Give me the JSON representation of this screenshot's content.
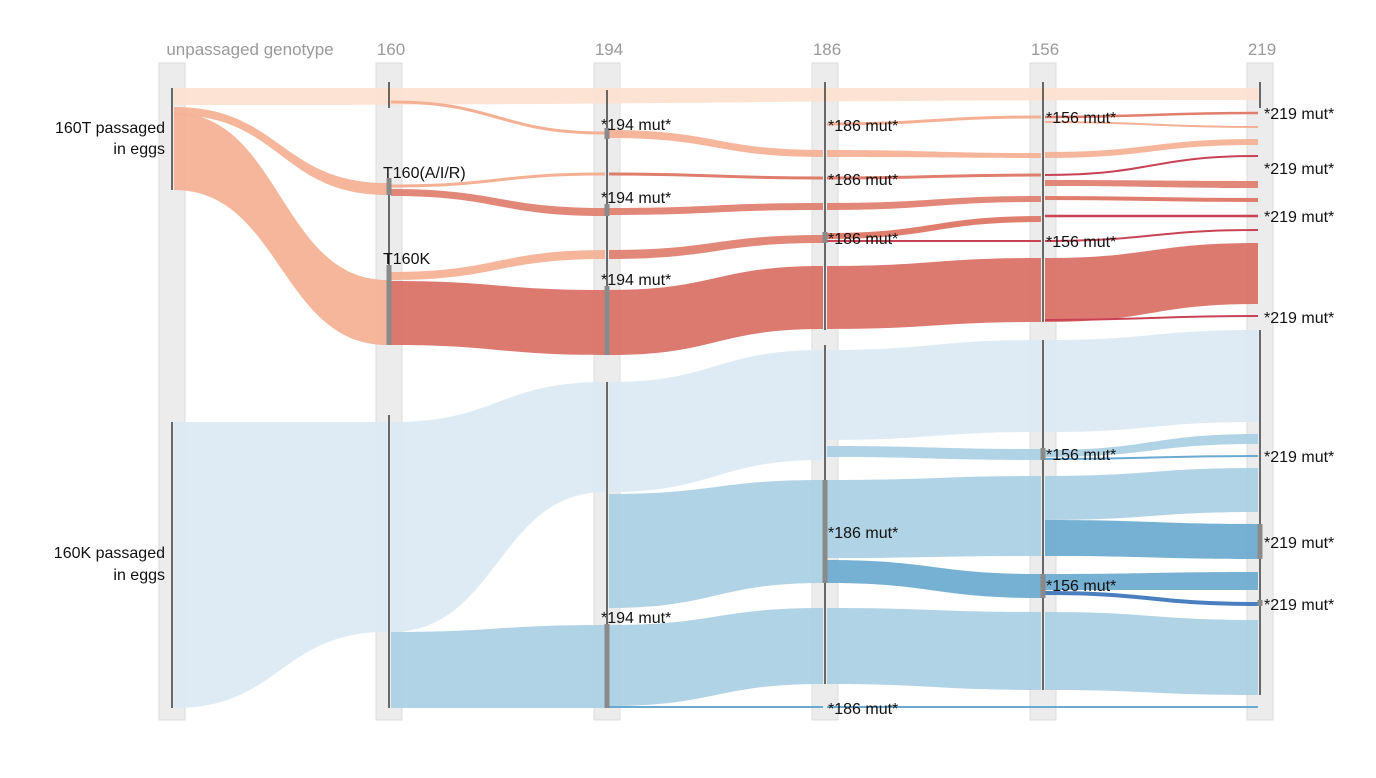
{
  "columns": [
    {
      "id": "c0",
      "label": "unpassaged genotype"
    },
    {
      "id": "c1",
      "label": "160"
    },
    {
      "id": "c2",
      "label": "194"
    },
    {
      "id": "c3",
      "label": "186"
    },
    {
      "id": "c4",
      "label": "156"
    },
    {
      "id": "c5",
      "label": "219"
    }
  ],
  "row_labels": [
    {
      "id": "r-160t",
      "lines": [
        "160T passaged",
        "in eggs"
      ]
    },
    {
      "id": "r-160k",
      "lines": [
        "160K passaged",
        "in eggs"
      ]
    }
  ],
  "node_labels": {
    "t160ailr": "T160(A/I/R)",
    "t160k": "T160K",
    "mut194": "*194 mut*",
    "mut186": "*186 mut*",
    "mut156": "*156 mut*",
    "mut219": "*219 mut*"
  },
  "colors": {
    "peach_light": "#fde1cf",
    "peach": "#f4b094",
    "salmon": "#e07e6e",
    "salmon_dark": "#d96f63",
    "crimson": "#c94356",
    "blue_pale": "#dce9f3",
    "blue_light": "#a9cfe3",
    "blue_mid": "#6aaad0",
    "blue_dark": "#4a7fbf"
  }
}
